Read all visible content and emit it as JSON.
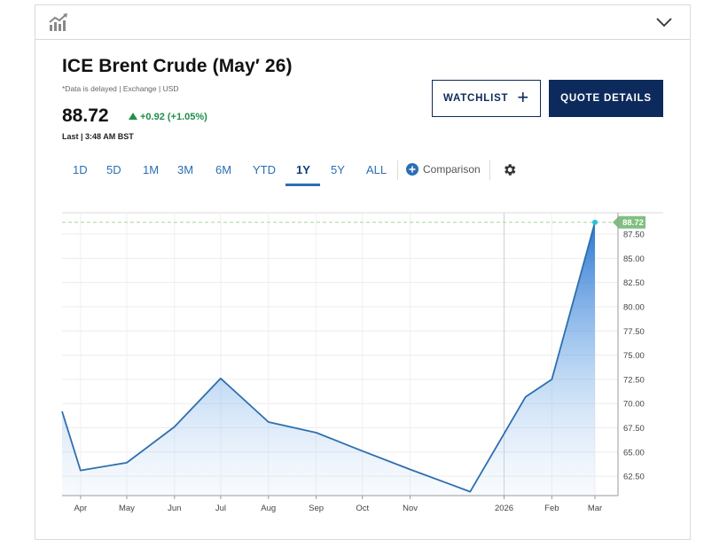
{
  "header": {
    "chart_icon": "bar-chart-icon",
    "toggle_icon": "chevron-down-icon"
  },
  "quote": {
    "title": "ICE Brent Crude (May′ 26)",
    "subtitle": "*Data is delayed | Exchange | USD",
    "price": "88.72",
    "change": "+0.92 (+1.05%)",
    "last_label": "Last | 3:48 AM BST",
    "change_color": "#1f8f49"
  },
  "buttons": {
    "watchlist": "WATCHLIST",
    "watchlist_icon": "plus-icon",
    "quote_details": "QUOTE DETAILS"
  },
  "ranges": [
    "1D",
    "5D",
    "1M",
    "3M",
    "6M",
    "YTD",
    "1Y",
    "5Y",
    "ALL"
  ],
  "active_range": "1Y",
  "comparison": {
    "label": "Comparison",
    "icon": "plus-circle-icon"
  },
  "settings_icon": "gear-icon",
  "chart_data": {
    "type": "area",
    "x": [
      "2025-03-20",
      "2025-04-01",
      "2025-05-01",
      "2025-06-01",
      "2025-07-01",
      "2025-08-01",
      "2025-09-01",
      "2025-10-01",
      "2025-11-01",
      "2025-12-10",
      "2026-01-15",
      "2026-02-01",
      "2026-03-01"
    ],
    "y": [
      69.2,
      63.1,
      63.9,
      67.6,
      72.6,
      68.1,
      67.0,
      65.1,
      63.2,
      60.9,
      70.7,
      72.5,
      88.72
    ],
    "x_tick_labels": [
      "Apr",
      "May",
      "Jun",
      "Jul",
      "Aug",
      "Sep",
      "Oct",
      "Nov",
      "2026",
      "Feb",
      "Mar"
    ],
    "y_ticks": [
      62.5,
      65,
      67.5,
      70,
      72.5,
      75,
      77.5,
      80,
      82.5,
      85,
      87.5
    ],
    "y_tick_labels": [
      "62.50",
      "65.00",
      "67.50",
      "70.00",
      "72.50",
      "75.00",
      "77.50",
      "80.00",
      "82.50",
      "85.00",
      "87.50"
    ],
    "ylim": [
      60.5,
      89.7
    ],
    "last_value_label": "88.72",
    "grid": true,
    "line_color": "#2e6fae",
    "fill_color": "#4a90d9",
    "last_label_color": "#7fbf7f",
    "reference_line_color": "#a9d4a0"
  }
}
